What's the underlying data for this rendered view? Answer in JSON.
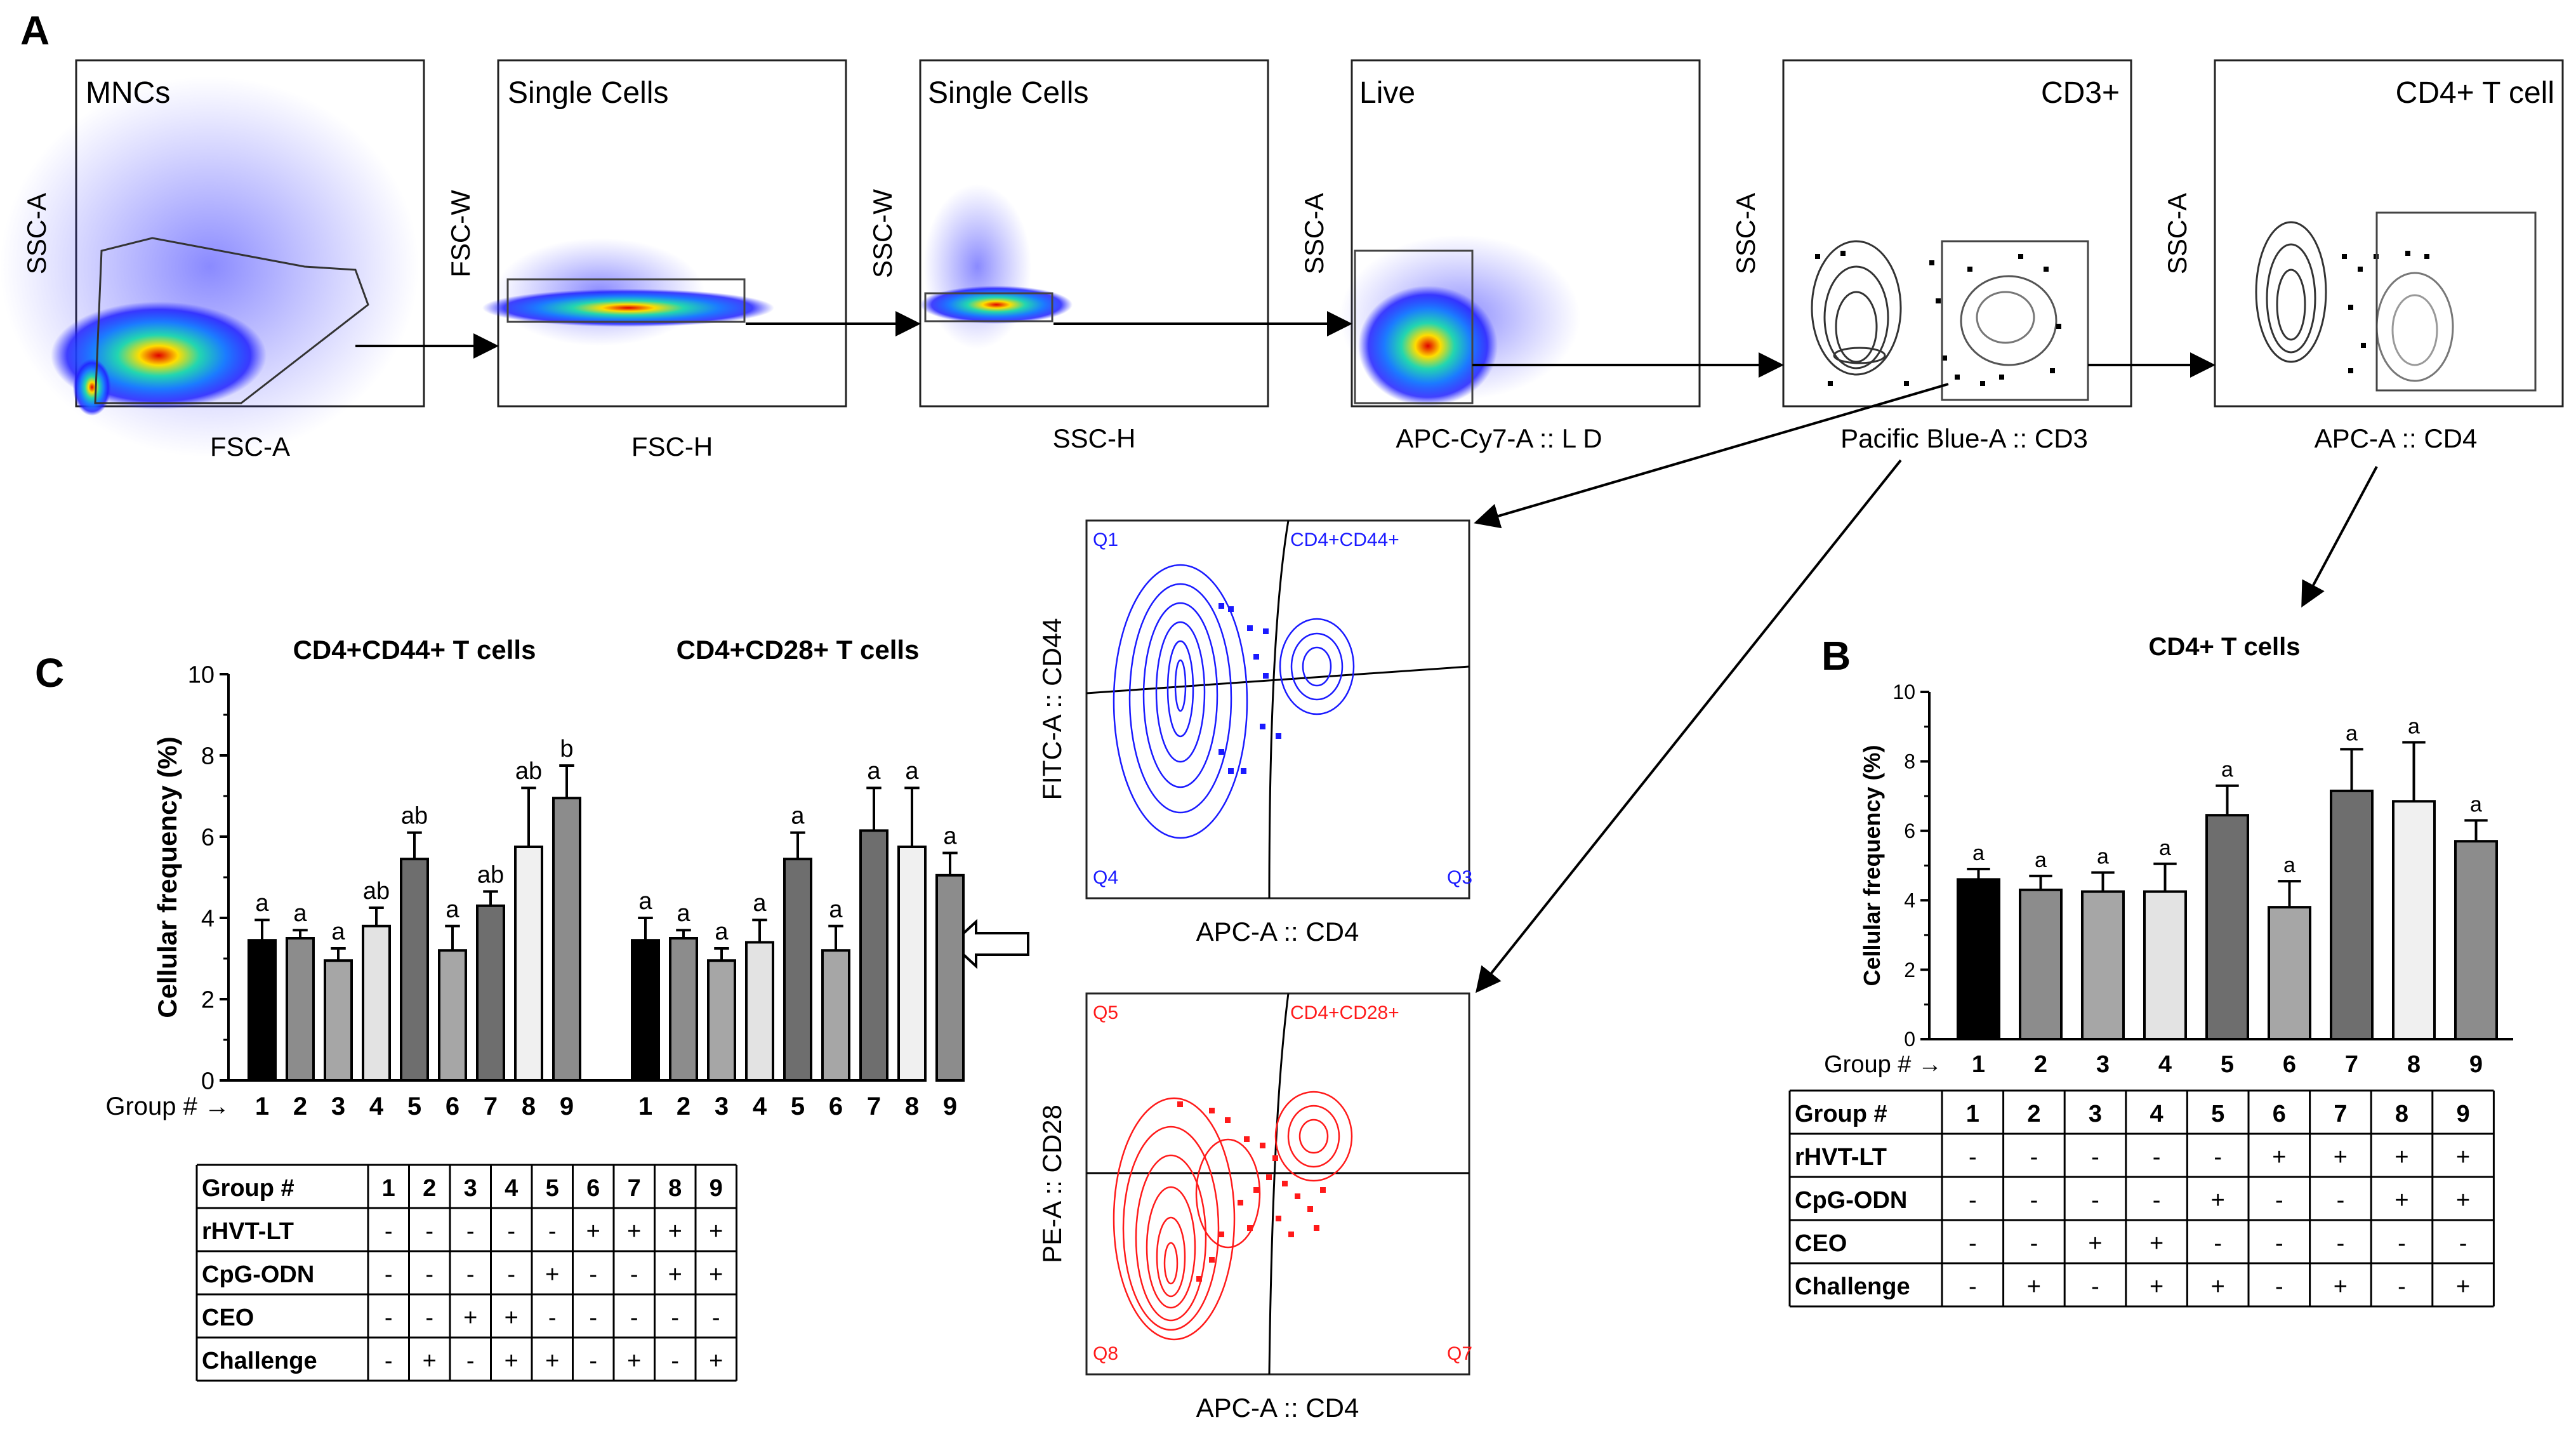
{
  "panel_labels": {
    "a": "A",
    "b": "B",
    "c": "C"
  },
  "flow_panels": [
    {
      "title": "MNCs",
      "xlabel": "FSC-A",
      "ylabel": "SSC-A"
    },
    {
      "title": "Single Cells",
      "xlabel": "FSC-H",
      "ylabel": "FSC-W"
    },
    {
      "title": "Single Cells",
      "xlabel": "SSC-H",
      "ylabel": "SSC-W"
    },
    {
      "title": "Live",
      "xlabel": "APC-Cy7-A :: L D",
      "ylabel": "SSC-A"
    },
    {
      "title": "CD3+",
      "xlabel": "Pacific Blue-A :: CD3",
      "ylabel": "SSC-A"
    },
    {
      "title": "CD4+ T cell",
      "xlabel": "APC-A :: CD4",
      "ylabel": "SSC-A"
    }
  ],
  "quad_plots": [
    {
      "ylabel": "FITC-A :: CD44",
      "xlabel": "APC-A :: CD4",
      "gate": "CD4+CD44+",
      "q_tl": "Q1",
      "q_bl": "Q4",
      "q_br": "Q3",
      "color": "#1a1aff"
    },
    {
      "ylabel": "PE-A :: CD28",
      "xlabel": "APC-A :: CD4",
      "gate": "CD4+CD28+",
      "q_tl": "Q5",
      "q_bl": "Q8",
      "q_br": "Q7",
      "color": "#ff1a1a"
    }
  ],
  "treatment_table": {
    "headers": [
      "Group #",
      "1",
      "2",
      "3",
      "4",
      "5",
      "6",
      "7",
      "8",
      "9"
    ],
    "rows": [
      [
        "rHVT-LT",
        "-",
        "-",
        "-",
        "-",
        "-",
        "+",
        "+",
        "+",
        "+"
      ],
      [
        "CpG-ODN",
        "-",
        "-",
        "-",
        "-",
        "+",
        "-",
        "-",
        "+",
        "+"
      ],
      [
        "CEO",
        "-",
        "-",
        "+",
        "+",
        "-",
        "-",
        "-",
        "-",
        "-"
      ],
      [
        "Challenge",
        "-",
        "+",
        "-",
        "+",
        "+",
        "-",
        "+",
        "-",
        "+"
      ]
    ]
  },
  "group_axis_label": "Group # →",
  "chart_data": [
    {
      "type": "bar",
      "id": "C",
      "ylabel": "Cellular frequency (%)",
      "ylim": [
        0,
        10
      ],
      "yticks": [
        "0",
        "2",
        "4",
        "6",
        "8",
        "10"
      ],
      "groups": [
        "1",
        "2",
        "3",
        "4",
        "5",
        "6",
        "7",
        "8",
        "9"
      ],
      "series": [
        {
          "name": "CD4+CD44+ T cells",
          "values": [
            3.45,
            3.5,
            2.95,
            3.8,
            5.45,
            3.2,
            4.3,
            5.75,
            6.95
          ],
          "errors": [
            0.5,
            0.2,
            0.3,
            0.45,
            0.65,
            0.6,
            0.35,
            1.45,
            0.8
          ],
          "letters": [
            "a",
            "a",
            "a",
            "ab",
            "ab",
            "a",
            "ab",
            "ab",
            "b"
          ]
        },
        {
          "name": "CD4+CD28+ T cells",
          "values": [
            3.45,
            3.5,
            2.95,
            3.4,
            5.45,
            3.2,
            6.15,
            5.75,
            5.05
          ],
          "errors": [
            0.55,
            0.2,
            0.3,
            0.55,
            0.65,
            0.6,
            1.05,
            1.45,
            0.55
          ],
          "letters": [
            "a",
            "a",
            "a",
            "a",
            "a",
            "a",
            "a",
            "a",
            "a"
          ]
        }
      ]
    },
    {
      "type": "bar",
      "id": "B",
      "title": "CD4+ T cells",
      "ylabel": "Cellular frequency (%)",
      "ylim": [
        0,
        10
      ],
      "yticks": [
        "0",
        "2",
        "4",
        "6",
        "8",
        "10"
      ],
      "groups": [
        "1",
        "2",
        "3",
        "4",
        "5",
        "6",
        "7",
        "8",
        "9"
      ],
      "series": [
        {
          "name": "CD4+ T cells",
          "values": [
            4.6,
            4.3,
            4.25,
            4.25,
            6.45,
            3.8,
            7.15,
            6.85,
            5.7
          ],
          "errors": [
            0.3,
            0.4,
            0.55,
            0.8,
            0.85,
            0.75,
            1.2,
            1.7,
            0.6
          ],
          "letters": [
            "a",
            "a",
            "a",
            "a",
            "a",
            "a",
            "a",
            "a",
            "a"
          ]
        }
      ]
    }
  ],
  "bar_colors": [
    "#000000",
    "#8c8c8c",
    "#a6a6a6",
    "#e3e3e3",
    "#6e6e6e",
    "#a6a6a6",
    "#6e6e6e",
    "#f0f0f0",
    "#8c8c8c"
  ]
}
